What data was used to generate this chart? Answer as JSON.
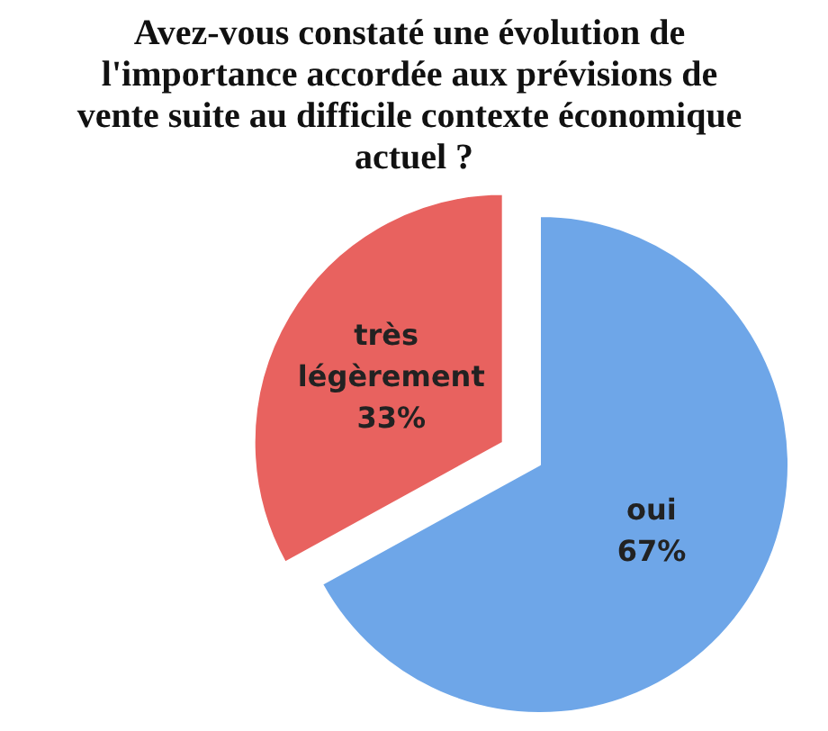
{
  "chart_data": {
    "type": "pie",
    "title": "Avez-vous constaté une évolution de l'importance accordée aux prévisions de vente suite au difficile contexte économique actuel ?",
    "categories": [
      "oui",
      "très légèrement"
    ],
    "values": [
      67,
      33
    ],
    "value_labels": [
      "67%",
      "33%"
    ],
    "colors": [
      "#6ea6e8",
      "#e8625f"
    ],
    "legend": false
  }
}
